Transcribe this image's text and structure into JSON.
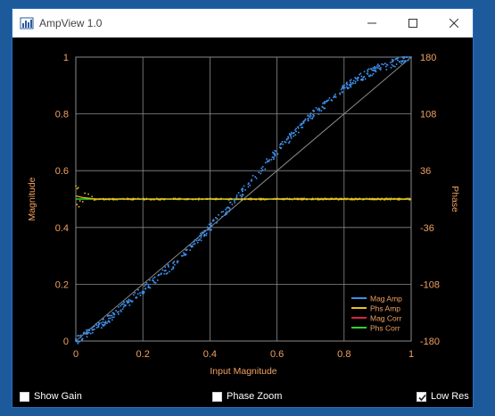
{
  "window": {
    "title": "AmpView 1.0",
    "controls": [
      "minimize",
      "maximize",
      "close"
    ]
  },
  "colors": {
    "window_border": "#2b6fb8",
    "plot_background": "#000000",
    "axis_text": "#f0a060",
    "grid": "#8a8a8a",
    "reference_line": "#8a8a8a"
  },
  "options": [
    {
      "label": "Show Gain",
      "checked": false
    },
    {
      "label": "Phase Zoom",
      "checked": false
    },
    {
      "label": "Low Res",
      "checked": true
    }
  ],
  "chart_data": {
    "type": "scatter",
    "xlabel": "Input Magnitude",
    "ylabel": "Magnitude",
    "y2label": "Phase",
    "xlim": [
      0,
      1
    ],
    "ylim": [
      0,
      1
    ],
    "y2lim": [
      -180,
      180
    ],
    "xticks": [
      "0",
      "0.2",
      "0.4",
      "0.6",
      "0.8",
      "1"
    ],
    "yticks": [
      "0",
      "0.2",
      "0.4",
      "0.6",
      "0.8",
      "1"
    ],
    "y2ticks": [
      "-180",
      "-108",
      "-36",
      "36",
      "108",
      "180"
    ],
    "grid": true,
    "legend_position": "bottom-right",
    "series": [
      {
        "name": "Mag Amp",
        "color": "#3d8ee8",
        "x": [
          0,
          0.05,
          0.1,
          0.15,
          0.2,
          0.25,
          0.3,
          0.35,
          0.4,
          0.45,
          0.5,
          0.55,
          0.6,
          0.65,
          0.7,
          0.75,
          0.8,
          0.85,
          0.9,
          0.95,
          1.0
        ],
        "y": [
          0,
          0.04,
          0.08,
          0.13,
          0.18,
          0.23,
          0.28,
          0.34,
          0.4,
          0.46,
          0.53,
          0.6,
          0.67,
          0.73,
          0.79,
          0.84,
          0.89,
          0.93,
          0.96,
          0.98,
          1.0
        ]
      },
      {
        "name": "Phs Amp",
        "color": "#e8c020",
        "x": [
          0,
          0.02,
          0.04,
          0.06,
          0.1,
          0.2,
          0.4,
          0.6,
          0.8,
          1.0
        ],
        "y": [
          4,
          2,
          1,
          0,
          0,
          0,
          0,
          0,
          0,
          0
        ]
      },
      {
        "name": "Mag Corr",
        "color": "#e02040",
        "x": [
          0,
          1
        ],
        "y": [
          0,
          1
        ]
      },
      {
        "name": "Phs Corr",
        "color": "#30d030",
        "x": [
          0,
          1
        ],
        "y": [
          0,
          0
        ]
      }
    ]
  }
}
